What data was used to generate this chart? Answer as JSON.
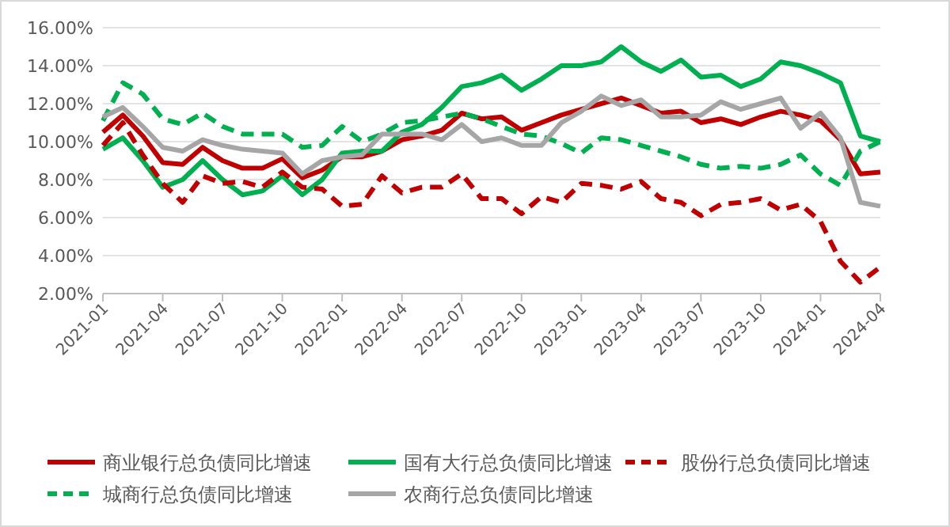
{
  "chart_data": {
    "type": "line",
    "x": [
      "2021-01",
      "2021-02",
      "2021-03",
      "2021-04",
      "2021-05",
      "2021-06",
      "2021-07",
      "2021-08",
      "2021-09",
      "2021-10",
      "2021-11",
      "2021-12",
      "2022-01",
      "2022-02",
      "2022-03",
      "2022-04",
      "2022-05",
      "2022-06",
      "2022-07",
      "2022-08",
      "2022-09",
      "2022-10",
      "2022-11",
      "2022-12",
      "2023-01",
      "2023-02",
      "2023-03",
      "2023-04",
      "2023-05",
      "2023-06",
      "2023-07",
      "2023-08",
      "2023-09",
      "2023-10",
      "2023-11",
      "2023-12",
      "2024-01",
      "2024-02",
      "2024-03",
      "2024-04"
    ],
    "xlim": [
      "2021-01",
      "2024-04"
    ],
    "xticks": [
      "2021-01",
      "2021-04",
      "2021-07",
      "2021-10",
      "2022-01",
      "2022-04",
      "2022-07",
      "2022-10",
      "2023-01",
      "2023-04",
      "2023-07",
      "2023-10",
      "2024-01",
      "2024-04"
    ],
    "ylim": [
      2,
      16
    ],
    "yticks": [
      {
        "value": 2,
        "label": "2.00%"
      },
      {
        "value": 4,
        "label": "4.00%"
      },
      {
        "value": 6,
        "label": "6.00%"
      },
      {
        "value": 8,
        "label": "8.00%"
      },
      {
        "value": 10,
        "label": "10.00%"
      },
      {
        "value": 12,
        "label": "12.00%"
      },
      {
        "value": 14,
        "label": "14.00%"
      },
      {
        "value": 16,
        "label": "16.00%"
      }
    ],
    "grid": "y",
    "legend": "bottom",
    "series": [
      {
        "name": "商业银行总负债同比增速",
        "color": "#c00000",
        "line_style": "solid",
        "values": [
          10.5,
          11.4,
          10.3,
          8.9,
          8.8,
          9.7,
          9.0,
          8.6,
          8.6,
          9.1,
          8.1,
          8.5,
          9.2,
          9.2,
          9.5,
          10.1,
          10.3,
          10.6,
          11.5,
          11.2,
          11.3,
          10.6,
          11.0,
          11.4,
          11.7,
          12.0,
          12.3,
          11.9,
          11.5,
          11.6,
          11.0,
          11.2,
          10.9,
          11.3,
          11.6,
          11.4,
          11.1,
          10.1,
          8.3,
          8.4
        ]
      },
      {
        "name": "国有大行总负债同比增速",
        "color": "#00b050",
        "line_style": "solid",
        "values": [
          9.6,
          10.2,
          9.0,
          7.6,
          8.0,
          9.0,
          8.0,
          7.2,
          7.4,
          8.2,
          7.2,
          8.0,
          9.4,
          9.5,
          9.5,
          10.5,
          10.9,
          11.8,
          12.9,
          13.1,
          13.5,
          12.7,
          13.3,
          14.0,
          14.0,
          14.2,
          15.0,
          14.2,
          13.7,
          14.3,
          13.4,
          13.5,
          12.9,
          13.3,
          14.2,
          14.0,
          13.6,
          13.1,
          10.3,
          10.0
        ]
      },
      {
        "name": "股份行总负债同比增速",
        "color": "#c00000",
        "line_style": "dashed",
        "values": [
          9.8,
          11.0,
          9.3,
          7.8,
          6.8,
          8.2,
          7.8,
          7.9,
          7.6,
          8.4,
          7.6,
          7.5,
          6.6,
          6.7,
          8.2,
          7.3,
          7.6,
          7.6,
          8.3,
          7.0,
          7.0,
          6.2,
          7.1,
          6.8,
          7.8,
          7.7,
          7.5,
          7.9,
          7.0,
          6.8,
          6.1,
          6.7,
          6.8,
          7.0,
          6.4,
          6.7,
          5.8,
          3.7,
          2.6,
          3.4
        ]
      },
      {
        "name": "城商行总负债同比增速",
        "color": "#00b050",
        "line_style": "dashed",
        "values": [
          11.1,
          13.1,
          12.5,
          11.2,
          10.9,
          11.5,
          10.8,
          10.4,
          10.4,
          10.4,
          9.7,
          9.8,
          10.8,
          10.0,
          10.4,
          11.0,
          11.1,
          11.3,
          11.5,
          11.2,
          10.8,
          10.4,
          10.3,
          9.9,
          9.4,
          10.2,
          10.1,
          9.8,
          9.5,
          9.2,
          8.8,
          8.6,
          8.7,
          8.6,
          8.8,
          9.3,
          8.3,
          7.7,
          9.5,
          10.0
        ]
      },
      {
        "name": "农商行总负债同比增速",
        "color": "#a6a6a6",
        "line_style": "solid",
        "values": [
          11.3,
          11.8,
          10.8,
          9.7,
          9.5,
          10.1,
          9.8,
          9.6,
          9.5,
          9.4,
          8.3,
          9.0,
          9.2,
          9.3,
          10.4,
          10.4,
          10.4,
          10.1,
          10.9,
          10.0,
          10.2,
          9.8,
          9.8,
          11.0,
          11.6,
          12.4,
          11.9,
          12.2,
          11.3,
          11.3,
          11.4,
          12.1,
          11.7,
          12.0,
          12.3,
          10.7,
          11.5,
          10.2,
          6.8,
          6.6
        ]
      }
    ]
  }
}
